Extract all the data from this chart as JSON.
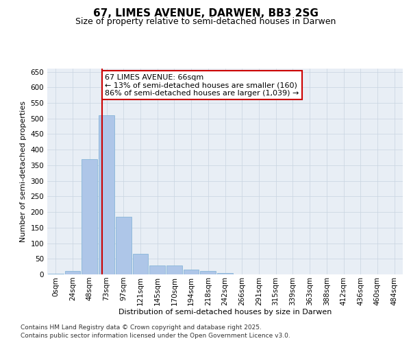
{
  "title": "67, LIMES AVENUE, DARWEN, BB3 2SG",
  "subtitle": "Size of property relative to semi-detached houses in Darwen",
  "xlabel": "Distribution of semi-detached houses by size in Darwen",
  "ylabel": "Number of semi-detached properties",
  "bin_labels": [
    "0sqm",
    "24sqm",
    "48sqm",
    "73sqm",
    "97sqm",
    "121sqm",
    "145sqm",
    "170sqm",
    "194sqm",
    "218sqm",
    "242sqm",
    "266sqm",
    "291sqm",
    "315sqm",
    "339sqm",
    "363sqm",
    "388sqm",
    "412sqm",
    "436sqm",
    "460sqm",
    "484sqm"
  ],
  "n_bins": 21,
  "bar_values": [
    3,
    12,
    370,
    510,
    185,
    65,
    28,
    28,
    15,
    10,
    5,
    1,
    0,
    0,
    0,
    1,
    0,
    0,
    0,
    0,
    1
  ],
  "bar_color": "#aec6e8",
  "bar_edge_color": "#7aafd4",
  "property_bin_index": 2.75,
  "property_line_color": "#cc0000",
  "annotation_title": "67 LIMES AVENUE: 66sqm",
  "annotation_line1": "← 13% of semi-detached houses are smaller (160)",
  "annotation_line2": "86% of semi-detached houses are larger (1,039) →",
  "annotation_box_color": "#cc0000",
  "ylim": [
    0,
    660
  ],
  "yticks": [
    0,
    50,
    100,
    150,
    200,
    250,
    300,
    350,
    400,
    450,
    500,
    550,
    600,
    650
  ],
  "grid_color": "#c8d4e0",
  "background_color": "#e8eef5",
  "footer_line1": "Contains HM Land Registry data © Crown copyright and database right 2025.",
  "footer_line2": "Contains public sector information licensed under the Open Government Licence v3.0.",
  "title_fontsize": 11,
  "subtitle_fontsize": 9,
  "label_fontsize": 8,
  "tick_fontsize": 7.5,
  "footer_fontsize": 6.5
}
